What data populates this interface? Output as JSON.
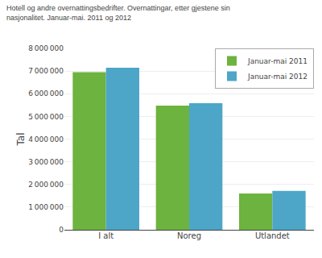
{
  "chart_data": {
    "type": "bar",
    "title": "Hotell og andre overnattingsbedrifter. Overnattingar, etter gjestene sin\nnasjonalitet. Januar-mai. 2011 og 2012",
    "ylabel": "Tal",
    "categories": [
      "I alt",
      "Noreg",
      "Utlandet"
    ],
    "series": [
      {
        "name": "Januar-mai 2011",
        "color": "#6db33f",
        "values": [
          6950000,
          5480000,
          1600000
        ]
      },
      {
        "name": "Januar-mai 2012",
        "color": "#4da6c8",
        "values": [
          7150000,
          5580000,
          1720000
        ]
      }
    ],
    "ylim": [
      0,
      8000000
    ],
    "yticks": [
      0,
      {
        "value": 1000000,
        "label": "1 000 000"
      },
      {
        "value": 2000000,
        "label": "2 000 000"
      },
      {
        "value": 3000000,
        "label": "3 000 000"
      },
      {
        "value": 4000000,
        "label": "4 000 000"
      },
      {
        "value": 5000000,
        "label": "5 000 000"
      },
      {
        "value": 6000000,
        "label": "6 000 000"
      },
      {
        "value": 7000000,
        "label": "7 000 000"
      },
      {
        "value": 8000000,
        "label": "8 000 000"
      }
    ],
    "grid": true,
    "legend": "upper right"
  }
}
